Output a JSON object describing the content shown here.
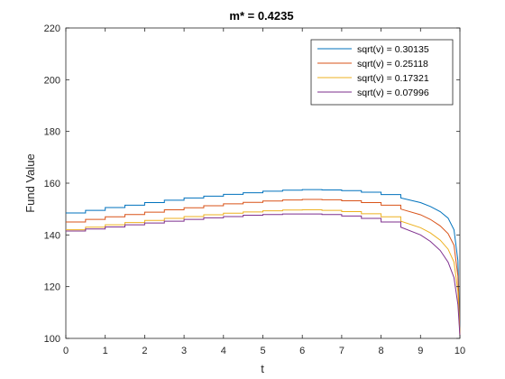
{
  "chart_data": {
    "type": "line",
    "title": "m* = 0.4235",
    "xlabel": "t",
    "ylabel": "Fund Value",
    "xlim": [
      0,
      10
    ],
    "ylim": [
      100,
      220
    ],
    "xticks": [
      "0",
      "1",
      "2",
      "3",
      "4",
      "5",
      "6",
      "7",
      "8",
      "9",
      "10"
    ],
    "yticks": [
      "100",
      "120",
      "140",
      "160",
      "180",
      "200",
      "220"
    ],
    "grid": false,
    "legend_position": "top-right",
    "x": [
      0,
      0.5,
      1,
      1.5,
      2,
      2.5,
      3,
      3.5,
      4,
      4.5,
      5,
      5.5,
      6,
      6.5,
      7,
      7.5,
      8,
      8.5,
      9,
      9.25,
      9.5,
      9.7,
      9.85,
      9.95,
      10
    ],
    "series": [
      {
        "name": "sqrt(v) = 0.30135",
        "color": "#0072BD",
        "values": [
          148.5,
          149.5,
          150.6,
          151.5,
          152.5,
          153.4,
          154.3,
          155.0,
          155.7,
          156.3,
          156.9,
          157.3,
          157.5,
          157.4,
          157.1,
          156.5,
          155.6,
          154.3,
          152.5,
          151.0,
          149.0,
          146.5,
          142.0,
          130.0,
          101.0
        ]
      },
      {
        "name": "sqrt(v) = 0.25118",
        "color": "#D95319",
        "values": [
          145.0,
          146.0,
          147.0,
          147.9,
          148.8,
          149.7,
          150.5,
          151.3,
          152.0,
          152.6,
          153.1,
          153.5,
          153.7,
          153.6,
          153.2,
          152.5,
          151.5,
          150.0,
          147.8,
          146.0,
          143.5,
          140.5,
          136.0,
          124.0,
          101.0
        ]
      },
      {
        "name": "sqrt(v) = 0.17321",
        "color": "#EDB120",
        "values": [
          142.0,
          143.0,
          143.9,
          144.8,
          145.6,
          146.4,
          147.1,
          147.8,
          148.4,
          148.9,
          149.3,
          149.6,
          149.7,
          149.5,
          149.0,
          148.2,
          147.0,
          145.3,
          142.8,
          140.8,
          138.0,
          134.5,
          129.5,
          118.0,
          101.0
        ]
      },
      {
        "name": "sqrt(v) = 0.07996",
        "color": "#7E2F8E",
        "values": [
          141.5,
          142.3,
          143.1,
          143.9,
          144.6,
          145.3,
          146.0,
          146.6,
          147.1,
          147.6,
          147.9,
          148.1,
          148.1,
          147.9,
          147.3,
          146.4,
          145.0,
          143.0,
          140.0,
          137.5,
          134.0,
          129.5,
          123.5,
          113.0,
          101.0
        ]
      }
    ]
  }
}
